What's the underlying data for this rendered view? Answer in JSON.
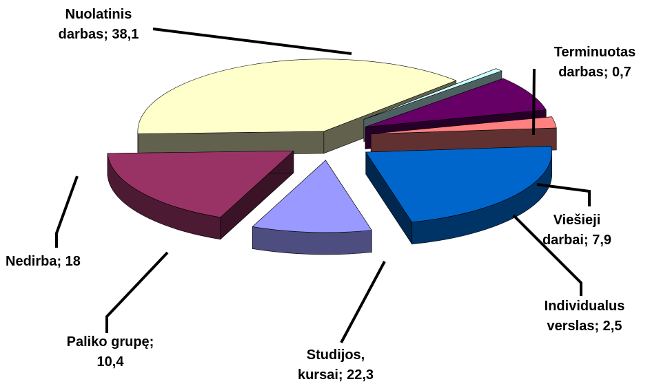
{
  "chart_data": {
    "type": "pie",
    "three_d": true,
    "exploded": true,
    "data_labels": "category; value",
    "slices": [
      {
        "label": "Nuolatinis darbas",
        "value": 38.1,
        "color": "#FFFFCC",
        "label_lines": [
          "Nuolatinis",
          "darbas; 38,1"
        ]
      },
      {
        "label": "Terminuotas darbas",
        "value": 0.7,
        "color": "#CCFFFF",
        "label_lines": [
          "Terminuotas",
          "darbas; 0,7"
        ]
      },
      {
        "label": "Viešieji darbai",
        "value": 7.9,
        "color": "#660066",
        "label_lines": [
          "Viešieji",
          "darbai; 7,9"
        ]
      },
      {
        "label": "Individualus verslas",
        "value": 2.5,
        "color": "#FF8080",
        "label_lines": [
          "Individualus",
          "verslas; 2,5"
        ]
      },
      {
        "label": "Studijos, kursai",
        "value": 22.3,
        "color": "#0066CC",
        "label_lines": [
          "Studijos,",
          "kursai; 22,3"
        ]
      },
      {
        "label": "Paliko grupę",
        "value": 10.4,
        "color": "#9999FF",
        "label_lines": [
          "Paliko grupę;",
          "10,4"
        ]
      },
      {
        "label": "Nedirba",
        "value": 18,
        "color": "#993366",
        "label_lines": [
          "Nedirba; 18"
        ]
      }
    ]
  }
}
